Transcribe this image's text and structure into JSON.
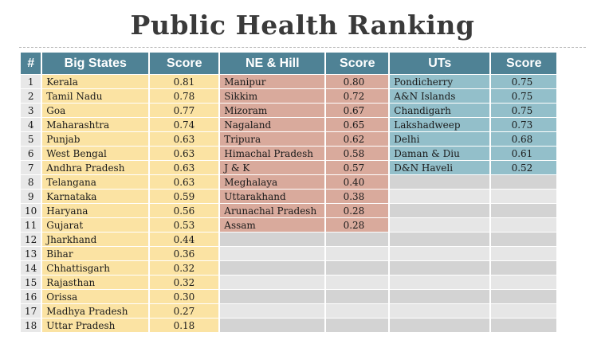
{
  "title": "Public Health Ranking",
  "headers": {
    "rank": "#",
    "big_states": "Big States",
    "big_score": "Score",
    "ne_hill": "NE & Hill",
    "ne_score": "Score",
    "uts": "UTs",
    "ut_score": "Score"
  },
  "ranks": [
    "1",
    "2",
    "3",
    "4",
    "5",
    "6",
    "7",
    "8",
    "9",
    "10",
    "11",
    "12",
    "13",
    "14",
    "15",
    "16",
    "17",
    "18"
  ],
  "big_states": [
    {
      "name": "Kerala",
      "score": "0.81"
    },
    {
      "name": "Tamil Nadu",
      "score": "0.78"
    },
    {
      "name": "Goa",
      "score": "0.77"
    },
    {
      "name": "Maharashtra",
      "score": "0.74"
    },
    {
      "name": "Punjab",
      "score": "0.63"
    },
    {
      "name": "West Bengal",
      "score": "0.63"
    },
    {
      "name": "Andhra Pradesh",
      "score": "0.63"
    },
    {
      "name": "Telangana",
      "score": "0.63"
    },
    {
      "name": "Karnataka",
      "score": "0.59"
    },
    {
      "name": "Haryana",
      "score": "0.56"
    },
    {
      "name": "Gujarat",
      "score": "0.53"
    },
    {
      "name": "Jharkhand",
      "score": "0.44"
    },
    {
      "name": "Bihar",
      "score": "0.36"
    },
    {
      "name": "Chhattisgarh",
      "score": "0.32"
    },
    {
      "name": "Rajasthan",
      "score": "0.32"
    },
    {
      "name": "Orissa",
      "score": "0.30"
    },
    {
      "name": "Madhya Pradesh",
      "score": "0.27"
    },
    {
      "name": "Uttar Pradesh",
      "score": "0.18"
    }
  ],
  "ne_hill": [
    {
      "name": "Manipur",
      "score": "0.80"
    },
    {
      "name": "Sikkim",
      "score": "0.72"
    },
    {
      "name": "Mizoram",
      "score": "0.67"
    },
    {
      "name": "Nagaland",
      "score": "0.65"
    },
    {
      "name": "Tripura",
      "score": "0.62"
    },
    {
      "name": "Himachal Pradesh",
      "score": "0.58"
    },
    {
      "name": "J & K",
      "score": "0.57"
    },
    {
      "name": "Meghalaya",
      "score": "0.40"
    },
    {
      "name": "Uttarakhand",
      "score": "0.38"
    },
    {
      "name": "Arunachal Pradesh",
      "score": "0.28"
    },
    {
      "name": "Assam",
      "score": "0.28"
    }
  ],
  "uts": [
    {
      "name": "Pondicherry",
      "score": "0.75"
    },
    {
      "name": "A&N Islands",
      "score": "0.75"
    },
    {
      "name": "Chandigarh",
      "score": "0.75"
    },
    {
      "name": "Lakshadweep",
      "score": "0.73"
    },
    {
      "name": "Delhi",
      "score": "0.68"
    },
    {
      "name": "Daman & Diu",
      "score": "0.61"
    },
    {
      "name": "D&N Haveli",
      "score": "0.52"
    }
  ],
  "colors": {
    "header": "#4f8295",
    "big_states": "#fbe3a3",
    "ne_hill": "#d9aa9c",
    "uts": "#93bfca"
  }
}
